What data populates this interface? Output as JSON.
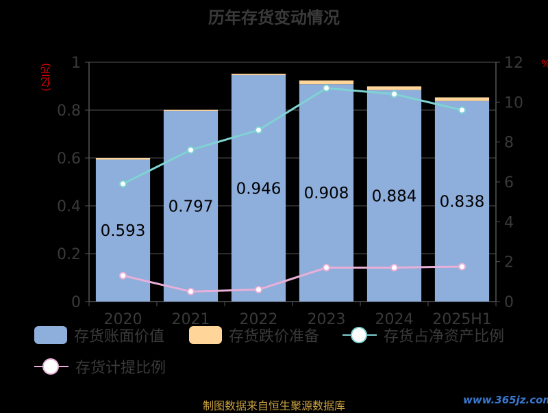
{
  "title": "历年存货变动情况",
  "left_unit": "(亿元)",
  "right_unit": "%",
  "footer": "制图数据来自恒生聚源数据库",
  "watermark": "www.365jz.com",
  "colors": {
    "bar_value": "#8eaedb",
    "bar_reserve": "#ffd59a",
    "line_net_asset": "#7fd3d3",
    "line_provision": "#e8b0d8",
    "axis": "#555555",
    "text": "#3a3a3a"
  },
  "legend": [
    {
      "label": "存货账面价值",
      "kind": "bar",
      "color": "#8eaedb"
    },
    {
      "label": "存货跌价准备",
      "kind": "bar",
      "color": "#ffd59a"
    },
    {
      "label": "存货占净资产比例",
      "kind": "line",
      "color": "#7fd3d3"
    },
    {
      "label": "存货计提比例",
      "kind": "line",
      "color": "#e8b0d8"
    }
  ],
  "chart_data": {
    "type": "bar",
    "categories": [
      "2020",
      "2021",
      "2022",
      "2023",
      "2024",
      "2025H1"
    ],
    "y_left": {
      "label": "(亿元)",
      "range": [
        0,
        1
      ],
      "ticks": [
        "0",
        "0.2",
        "0.4",
        "0.6",
        "0.8",
        "1"
      ]
    },
    "y_right": {
      "label": "%",
      "range": [
        0,
        12
      ],
      "ticks": [
        "0",
        "2",
        "4",
        "6",
        "8",
        "10",
        "12"
      ]
    },
    "grid": true,
    "legend_position": "bottom",
    "series": [
      {
        "name": "存货账面价值",
        "type": "bar",
        "axis": "left",
        "stack": "inv",
        "values": [
          0.593,
          0.797,
          0.946,
          0.908,
          0.884,
          0.838
        ],
        "labels": [
          "0.593",
          "0.797",
          "0.946",
          "0.908",
          "0.884",
          "0.838"
        ]
      },
      {
        "name": "存货跌价准备",
        "type": "bar",
        "axis": "left",
        "stack": "inv",
        "values": [
          0.007,
          0.004,
          0.006,
          0.016,
          0.015,
          0.015
        ]
      },
      {
        "name": "存货占净资产比例",
        "type": "line",
        "axis": "right",
        "values": [
          5.9,
          7.6,
          8.6,
          10.7,
          10.4,
          9.6
        ]
      },
      {
        "name": "存货计提比例",
        "type": "line",
        "axis": "right",
        "values": [
          1.3,
          0.5,
          0.6,
          1.7,
          1.7,
          1.75
        ]
      }
    ]
  }
}
